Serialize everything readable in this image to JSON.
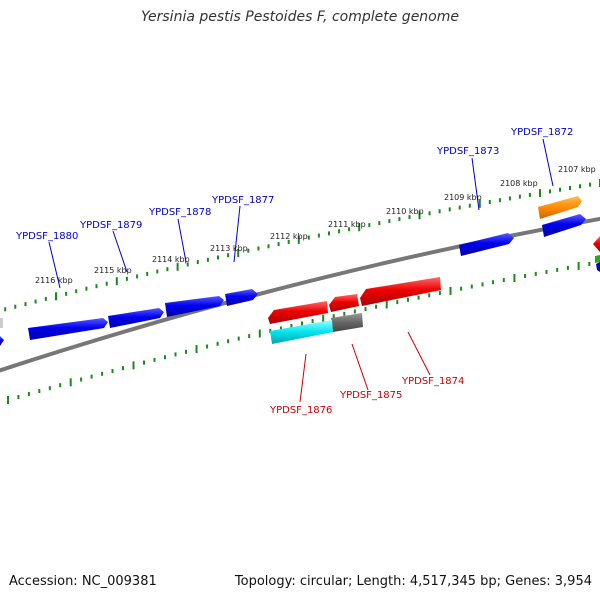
{
  "header": {
    "title": "Yersinia pestis Pestoides F, complete genome"
  },
  "footer": {
    "accession": "Accession: NC_009381",
    "topology": "Topology: circular; Length: 4,517,345 bp; Genes: 3,954"
  },
  "colors": {
    "backbone": "#777777",
    "forward_gene": "#0000ee",
    "reverse_gene": "#ee0000",
    "gray_gene": "#666666",
    "orange_gene": "#ff8c00",
    "cyan_gene": "#00e5ee",
    "tick": "#1a8a1a",
    "forward_label": "#0000cc",
    "reverse_label": "#cc0000"
  },
  "ticks": {
    "outer": [
      "2107 kbp",
      "2108 kbp",
      "2109 kbp",
      "2110 kbp",
      "2111 kbp",
      "2112 kbp",
      "2113 kbp",
      "2114 kbp",
      "2115 kbp",
      "2116 kbp"
    ]
  },
  "labels": {
    "forward": [
      "YPDSF_1872",
      "YPDSF_1873",
      "YPDSF_1877",
      "YPDSF_1878",
      "YPDSF_1879",
      "YPDSF_1880"
    ],
    "reverse": [
      "YPDSF_1874",
      "YPDSF_1875",
      "YPDSF_1876"
    ]
  }
}
